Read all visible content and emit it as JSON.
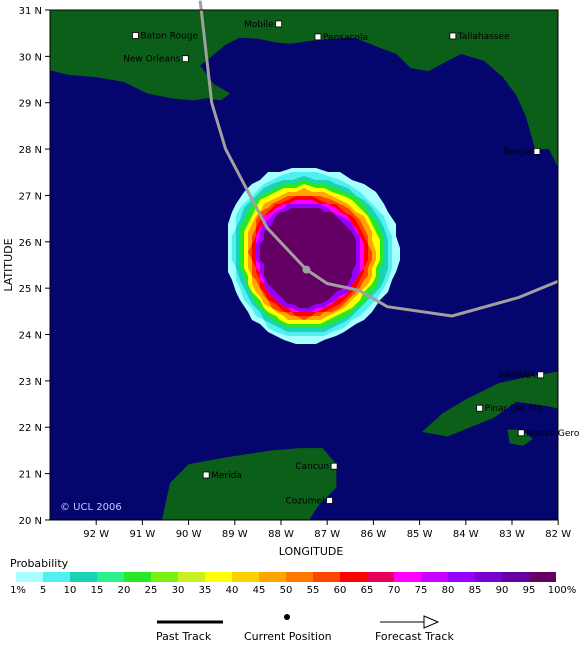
{
  "map": {
    "x_axis_title": "LONGITUDE",
    "y_axis_title": "LATITUDE",
    "longitude_labels": [
      "92 W",
      "91 W",
      "90 W",
      "89 W",
      "88 W",
      "87 W",
      "86 W",
      "85 W",
      "84 W",
      "83 W",
      "82 W"
    ],
    "latitude_labels": [
      "31 N",
      "30 N",
      "29 N",
      "28 N",
      "27 N",
      "26 N",
      "25 N",
      "24 N",
      "23 N",
      "22 N",
      "21 N",
      "20 N"
    ],
    "copyright": "© UCL 2006",
    "colors": {
      "ocean": "#05056e",
      "land": "#0b5f18",
      "track": "#a0a0a0"
    },
    "cities": [
      {
        "name": "Mobile",
        "lon": -88.05,
        "lat": 30.7
      },
      {
        "name": "Pensacola",
        "lon": -87.2,
        "lat": 30.42
      },
      {
        "name": "Baton Rouge",
        "lon": -91.15,
        "lat": 30.45
      },
      {
        "name": "Tallahassee",
        "lon": -84.28,
        "lat": 30.44
      },
      {
        "name": "New Orleans",
        "lon": -90.07,
        "lat": 29.95
      },
      {
        "name": "Tampa",
        "lon": -82.46,
        "lat": 27.95
      },
      {
        "name": "HAVANA",
        "lon": -82.38,
        "lat": 23.13
      },
      {
        "name": "Pinar Del Rio",
        "lon": -83.7,
        "lat": 22.41
      },
      {
        "name": "Nueva Gerona",
        "lon": -82.8,
        "lat": 21.88
      },
      {
        "name": "Merida",
        "lon": -89.62,
        "lat": 20.97
      },
      {
        "name": "Cancun",
        "lon": -86.85,
        "lat": 21.16
      },
      {
        "name": "Cozumel",
        "lon": -86.95,
        "lat": 20.42
      }
    ],
    "track": [
      {
        "lon": -89.75,
        "lat": 31.2
      },
      {
        "lon": -89.5,
        "lat": 29.0
      },
      {
        "lon": -89.2,
        "lat": 28.0
      },
      {
        "lon": -88.3,
        "lat": 26.3
      },
      {
        "lon": -87.45,
        "lat": 25.4
      },
      {
        "lon": -87.0,
        "lat": 25.1
      },
      {
        "lon": -86.3,
        "lat": 24.95
      },
      {
        "lon": -85.7,
        "lat": 24.6
      },
      {
        "lon": -84.3,
        "lat": 24.4
      },
      {
        "lon": -82.85,
        "lat": 24.8
      },
      {
        "lon": -82.0,
        "lat": 25.15
      }
    ],
    "current_position": {
      "lon": -87.45,
      "lat": 25.4
    },
    "probability_zone": {
      "center_lon": -87.5,
      "center_lat": 25.45
    }
  },
  "legend": {
    "title": "Probability",
    "colors": [
      "#a8ffff",
      "#50f0f0",
      "#1ad2b4",
      "#2bf08c",
      "#28e628",
      "#78f014",
      "#c8f01e",
      "#ffff00",
      "#ffd000",
      "#ffa500",
      "#ff7800",
      "#ff4500",
      "#ff0000",
      "#e6005a",
      "#ff00ff",
      "#c800ff",
      "#9600ff",
      "#7800d2",
      "#6400a0",
      "#640064"
    ],
    "tick_labels": [
      "1%",
      "5",
      "10",
      "15",
      "20",
      "25",
      "30",
      "35",
      "40",
      "45",
      "50",
      "55",
      "60",
      "65",
      "70",
      "75",
      "80",
      "85",
      "90",
      "95",
      "100%"
    ],
    "past_track": "Past Track",
    "current_position": "Current Position",
    "forecast_track": "Forecast Track"
  }
}
